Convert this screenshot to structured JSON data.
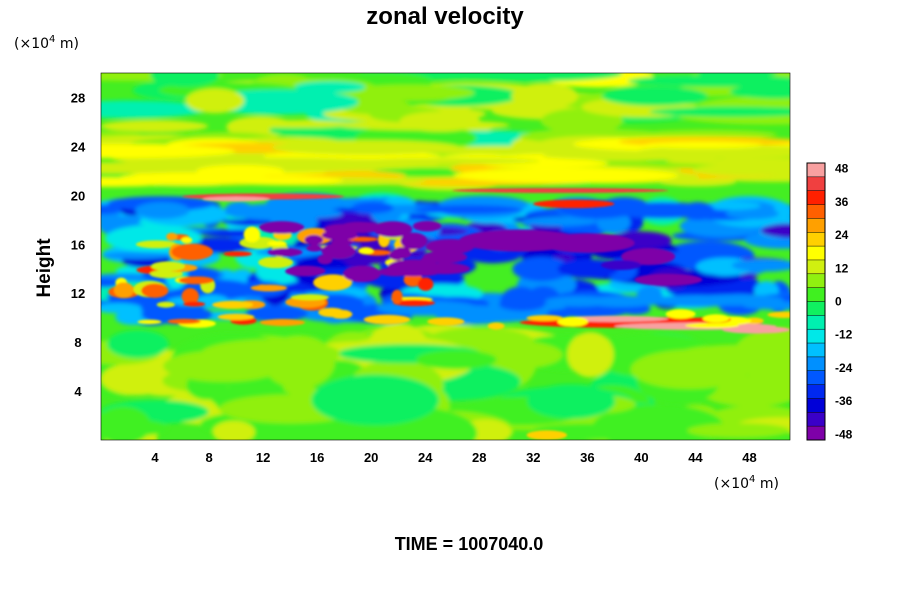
{
  "chart_data": {
    "type": "heatmap",
    "title": "zonal velocity",
    "ylabel": "Height",
    "y_unit": "(×10",
    "y_unit_exp": "4",
    "y_unit_tail": " m)",
    "x_unit": "(×10",
    "x_unit_exp": "4",
    "x_unit_tail": " m)",
    "xlim": [
      0,
      51
    ],
    "ylim": [
      0,
      30
    ],
    "x_ticks": [
      4,
      8,
      12,
      16,
      20,
      24,
      28,
      32,
      36,
      40,
      44,
      48
    ],
    "y_ticks": [
      4,
      8,
      12,
      16,
      20,
      24,
      28
    ],
    "colorbar": {
      "range": [
        -50,
        50
      ],
      "ticks": [
        48,
        36,
        24,
        12,
        0,
        -12,
        -24,
        -36,
        -48
      ],
      "levels": [
        {
          "from": -50,
          "color": "#7e00a8"
        },
        {
          "from": -45,
          "color": "#3a00c8"
        },
        {
          "from": -40,
          "color": "#0000d8"
        },
        {
          "from": -35,
          "color": "#0028f0"
        },
        {
          "from": -30,
          "color": "#0058ff"
        },
        {
          "from": -25,
          "color": "#0090ff"
        },
        {
          "from": -20,
          "color": "#00c0ff"
        },
        {
          "from": -15,
          "color": "#00e8e8"
        },
        {
          "from": -10,
          "color": "#00f0b0"
        },
        {
          "from": -5,
          "color": "#10f060"
        },
        {
          "from": 0,
          "color": "#40f020"
        },
        {
          "from": 5,
          "color": "#90f010"
        },
        {
          "from": 10,
          "color": "#d0f010"
        },
        {
          "from": 15,
          "color": "#ffff00"
        },
        {
          "from": 20,
          "color": "#ffd000"
        },
        {
          "from": 25,
          "color": "#ffa000"
        },
        {
          "from": 30,
          "color": "#ff6000"
        },
        {
          "from": 35,
          "color": "#ff2000"
        },
        {
          "from": 40,
          "color": "#f04040"
        },
        {
          "from": 45,
          "color": "#f8a0a0"
        }
      ]
    },
    "field_features": [
      {
        "x": [
          0,
          51
        ],
        "y": [
          19.5,
          20.5
        ],
        "value": 40
      },
      {
        "x": [
          30,
          51
        ],
        "y": [
          8.5,
          10
        ],
        "value": 45
      },
      {
        "x": [
          26,
          43
        ],
        "y": [
          15,
          16.5
        ],
        "value": -48
      },
      {
        "x": [
          0,
          51
        ],
        "y": [
          12,
          19
        ],
        "value": -30
      },
      {
        "x": [
          0,
          51
        ],
        "y": [
          0,
          8
        ],
        "value": 2
      },
      {
        "x": [
          0,
          51
        ],
        "y": [
          21,
          25
        ],
        "value": 18
      }
    ]
  },
  "footer": {
    "time_label": "TIME = 1007040.0"
  }
}
